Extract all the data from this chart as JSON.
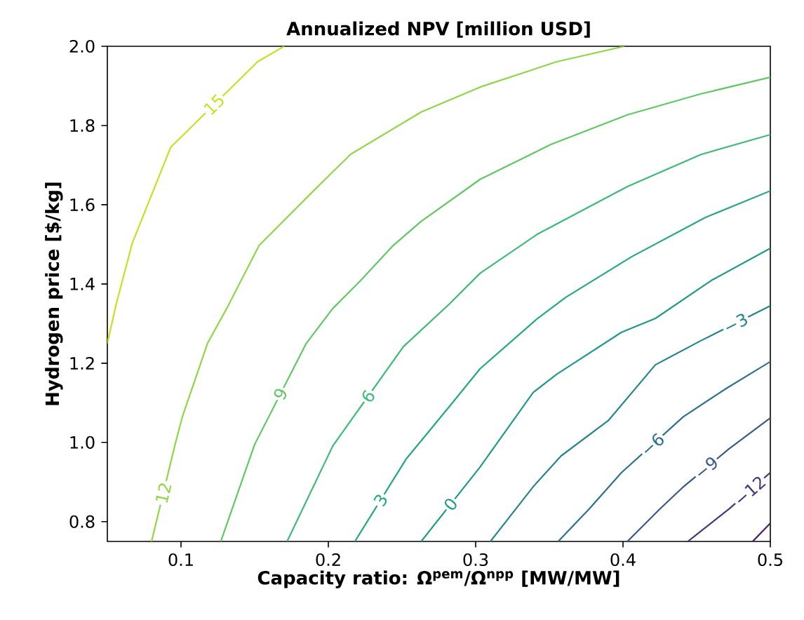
{
  "chart_data": {
    "type": "line",
    "title": "Annualized NPV [million USD]",
    "xlabel": "Capacity ratio: Ω$^{pem}$/Ω$^{npp}$ [MW/MW]",
    "ylabel": "Hydrogen price [$/kg]",
    "xlim": [
      0.05,
      0.5
    ],
    "ylim": [
      0.75,
      2.0
    ],
    "xticks": [
      0.1,
      0.2,
      0.3,
      0.4,
      0.5
    ],
    "yticks": [
      0.8,
      {
        "value": 1.0,
        "label": "1.0"
      },
      1.2,
      1.4,
      1.6,
      1.8,
      {
        "value": 2.0,
        "label": "2.0"
      }
    ],
    "series": [
      {
        "name": "15",
        "color": "#c8e020",
        "x": [
          0.05,
          0.056,
          0.067,
          0.093,
          0.152,
          0.17
        ],
        "values": [
          1.25,
          1.349,
          1.504,
          1.745,
          1.961,
          2.0
        ]
      },
      {
        "name": "12",
        "color": "#8fd744",
        "x": [
          0.08,
          0.096,
          0.101,
          0.118,
          0.131,
          0.153,
          0.191,
          0.215,
          0.263,
          0.303,
          0.355,
          0.401
        ],
        "values": [
          0.75,
          0.995,
          1.066,
          1.25,
          1.338,
          1.497,
          1.639,
          1.727,
          1.834,
          1.897,
          1.961,
          2.0
        ]
      },
      {
        "name": "9",
        "color": "#5ec962",
        "x": [
          0.127,
          0.15,
          0.185,
          0.203,
          0.222,
          0.244,
          0.263,
          0.303,
          0.351,
          0.403,
          0.453,
          0.5
        ],
        "values": [
          0.75,
          0.995,
          1.25,
          1.338,
          1.409,
          1.497,
          1.558,
          1.664,
          1.752,
          1.827,
          1.88,
          1.922
        ]
      },
      {
        "name": "6",
        "color": "#3bbb75",
        "x": [
          0.172,
          0.203,
          0.251,
          0.282,
          0.303,
          0.342,
          0.403,
          0.453,
          0.5
        ],
        "values": [
          0.75,
          0.991,
          1.242,
          1.349,
          1.427,
          1.526,
          1.646,
          1.727,
          1.777
        ]
      },
      {
        "name": "3",
        "color": "#22a884",
        "x": [
          0.218,
          0.253,
          0.282,
          0.303,
          0.342,
          0.361,
          0.406,
          0.456,
          0.5
        ],
        "values": [
          0.75,
          0.959,
          1.09,
          1.186,
          1.313,
          1.366,
          1.469,
          1.568,
          1.635
        ]
      },
      {
        "name": "0",
        "color": "#1f9a8a",
        "x": [
          0.263,
          0.303,
          0.339,
          0.355,
          0.399,
          0.422,
          0.46,
          0.5
        ],
        "values": [
          0.75,
          0.938,
          1.126,
          1.172,
          1.278,
          1.313,
          1.409,
          1.49
        ]
      },
      {
        "name": "−3",
        "color": "#25858e",
        "x": [
          0.31,
          0.339,
          0.358,
          0.39,
          0.422,
          0.453,
          0.5
        ],
        "values": [
          0.75,
          0.888,
          0.966,
          1.055,
          1.196,
          1.257,
          1.345
        ]
      },
      {
        "name": "−6",
        "color": "#2d708e",
        "x": [
          0.356,
          0.377,
          0.399,
          0.441,
          0.47,
          0.5
        ],
        "values": [
          0.75,
          0.832,
          0.924,
          1.065,
          1.136,
          1.204
        ]
      },
      {
        "name": "−9",
        "color": "#38598c",
        "x": [
          0.403,
          0.425,
          0.441,
          0.472,
          0.5
        ],
        "values": [
          0.75,
          0.832,
          0.888,
          0.984,
          1.062
        ]
      },
      {
        "name": "−12",
        "color": "#46337e",
        "x": [
          0.444,
          0.472,
          0.5
        ],
        "values": [
          0.75,
          0.832,
          0.924
        ]
      },
      {
        "color": "#481a6c",
        "x": [
          0.488,
          0.5
        ],
        "values": [
          0.75,
          0.796
        ]
      }
    ]
  }
}
